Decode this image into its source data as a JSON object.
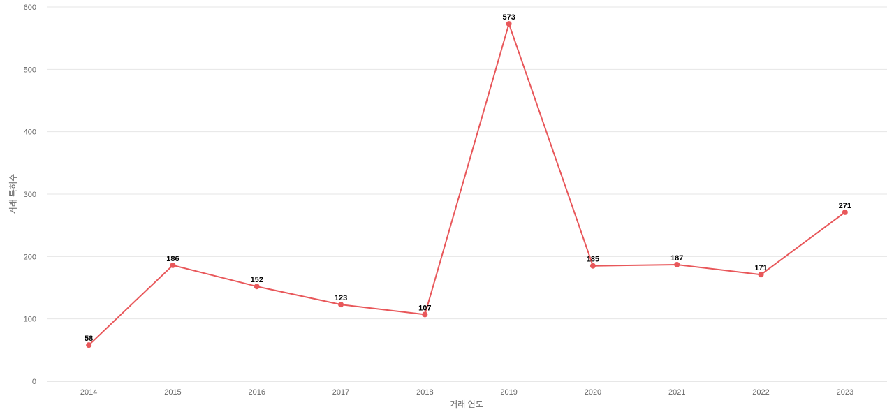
{
  "chart_data": {
    "type": "line",
    "xlabel": "거래 연도",
    "ylabel": "거래 특허수",
    "ylim": [
      0,
      600
    ],
    "yticks": [
      0,
      100,
      200,
      300,
      400,
      500,
      600
    ],
    "grid": true,
    "categories": [
      "2014",
      "2015",
      "2016",
      "2017",
      "2018",
      "2019",
      "2020",
      "2021",
      "2022",
      "2023"
    ],
    "series": [
      {
        "values": [
          58,
          186,
          152,
          123,
          107,
          573,
          185,
          187,
          171,
          271
        ],
        "color": "#e8575a"
      }
    ]
  }
}
